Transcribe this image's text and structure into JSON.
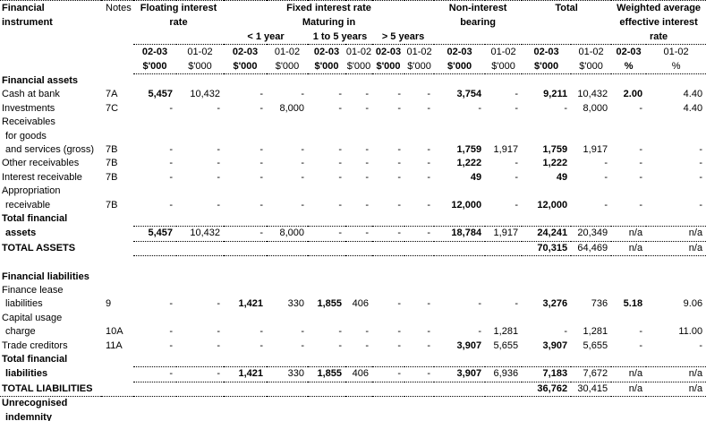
{
  "header": {
    "financial_instrument": [
      "Financial",
      "instrument"
    ],
    "notes": "Notes",
    "floating": [
      "Floating interest",
      "rate"
    ],
    "fixed": [
      "Fixed interest rate",
      "Maturing in"
    ],
    "maturities": [
      "< 1 year",
      "1 to 5 years",
      "> 5 years"
    ],
    "non_interest": [
      "Non-interest",
      "bearing"
    ],
    "total": "Total",
    "weighted": [
      "Weighted average",
      "effective interest",
      "rate"
    ],
    "year_current": "02-03",
    "year_prior": "01-02",
    "unit_money": "$'000",
    "unit_pct": "%"
  },
  "columns": [
    "floating_02-03",
    "floating_01-02",
    "lt1yr_02-03",
    "lt1yr_01-02",
    "1to5yr_02-03",
    "1to5yr_01-02",
    "gt5yr_02-03",
    "gt5yr_01-02",
    "non_interest_02-03",
    "non_interest_01-02",
    "total_02-03",
    "total_01-02",
    "wavg_02-03_pct",
    "wavg_01-02_pct"
  ],
  "rows": [
    {
      "label": "Financial assets",
      "bold": true
    },
    {
      "label": "Cash at bank",
      "notes": "7A",
      "cells": [
        "5,457",
        "10,432",
        "-",
        "-",
        "-",
        "-",
        "-",
        "-",
        "3,754",
        "-",
        "9,211",
        "10,432",
        "2.00",
        "4.40"
      ]
    },
    {
      "label": "Investments",
      "notes": "7C",
      "cells": [
        "-",
        "-",
        "-",
        "8,000",
        "-",
        "-",
        "-",
        "-",
        "-",
        "-",
        "-",
        "8,000",
        "-",
        "4.40"
      ]
    },
    {
      "label": "Receivables"
    },
    {
      "label": "for goods",
      "indent": true
    },
    {
      "label": "and services (gross)",
      "indent": true,
      "notes": "7B",
      "cells": [
        "-",
        "-",
        "-",
        "-",
        "-",
        "-",
        "-",
        "-",
        "1,759",
        "1,917",
        "1,759",
        "1,917",
        "-",
        "-"
      ]
    },
    {
      "label": "Other receivables",
      "notes": "7B",
      "cells": [
        "-",
        "-",
        "-",
        "-",
        "-",
        "-",
        "-",
        "-",
        "1,222",
        "-",
        "1,222",
        "-",
        "-",
        "-"
      ]
    },
    {
      "label": "Interest receivable",
      "notes": "7B",
      "cells": [
        "-",
        "-",
        "-",
        "-",
        "-",
        "-",
        "-",
        "-",
        "49",
        "-",
        "49",
        "-",
        "-",
        "-"
      ]
    },
    {
      "label": "Appropriation"
    },
    {
      "label": "receivable",
      "indent": true,
      "notes": "7B",
      "cells": [
        "-",
        "-",
        "-",
        "-",
        "-",
        "-",
        "-",
        "-",
        "12,000",
        "-",
        "12,000",
        "-",
        "-",
        "-"
      ]
    },
    {
      "label": "Total financial",
      "bold": true
    },
    {
      "label": "assets",
      "indent": true,
      "bold": true,
      "rule_top": true,
      "rule_bottom": true,
      "cells": [
        "5,457",
        "10,432",
        "-",
        "8,000",
        "-",
        "-",
        "-",
        "-",
        "18,784",
        "1,917",
        "24,241",
        "20,349",
        "n/a",
        "n/a"
      ]
    },
    {
      "label": "TOTAL ASSETS",
      "bold": true,
      "rule_bottom": true,
      "cells": [
        "",
        "",
        "",
        "",
        "",
        "",
        "",
        "",
        "",
        "",
        "70,315",
        "64,469",
        "n/a",
        "n/a"
      ]
    },
    {
      "blank": true
    },
    {
      "label": "Financial liabilities",
      "bold": true
    },
    {
      "label": "Finance lease"
    },
    {
      "label": "liabilities",
      "indent": true,
      "notes": "9",
      "cells": [
        "-",
        "-",
        "1,421",
        "330",
        "1,855",
        "406",
        "-",
        "-",
        "-",
        "-",
        "3,276",
        "736",
        "5.18",
        "9.06"
      ]
    },
    {
      "label": "Capital usage"
    },
    {
      "label": "charge",
      "indent": true,
      "notes": "10A",
      "cells": [
        "-",
        "-",
        "-",
        "-",
        "-",
        "-",
        "-",
        "-",
        "-",
        "1,281",
        "-",
        "1,281",
        "-",
        "11.00"
      ]
    },
    {
      "label": "Trade creditors",
      "notes": "11A",
      "cells": [
        "-",
        "-",
        "-",
        "-",
        "-",
        "-",
        "-",
        "-",
        "3,907",
        "5,655",
        "3,907",
        "5,655",
        "-",
        "-"
      ]
    },
    {
      "label": "Total financial",
      "bold": true
    },
    {
      "label": "liabilities",
      "indent": true,
      "bold": true,
      "rule_top": true,
      "rule_bottom": true,
      "cells": [
        "-",
        "-",
        "1,421",
        "330",
        "1,855",
        "406",
        "-",
        "-",
        "3,907",
        "6,936",
        "7,183",
        "7,672",
        "n/a",
        "n/a"
      ]
    },
    {
      "label": "TOTAL LIABILITIES",
      "bold": true,
      "rule_bottom_full": true,
      "cells": [
        "",
        "",
        "",
        "",
        "",
        "",
        "",
        "",
        "",
        "",
        "36,762",
        "30,415",
        "n/a",
        "n/a"
      ]
    },
    {
      "label": "Unrecognised",
      "bold": true
    },
    {
      "label": "indemnity",
      "indent": true,
      "bold": true,
      "rule_bottom_full": true
    }
  ]
}
